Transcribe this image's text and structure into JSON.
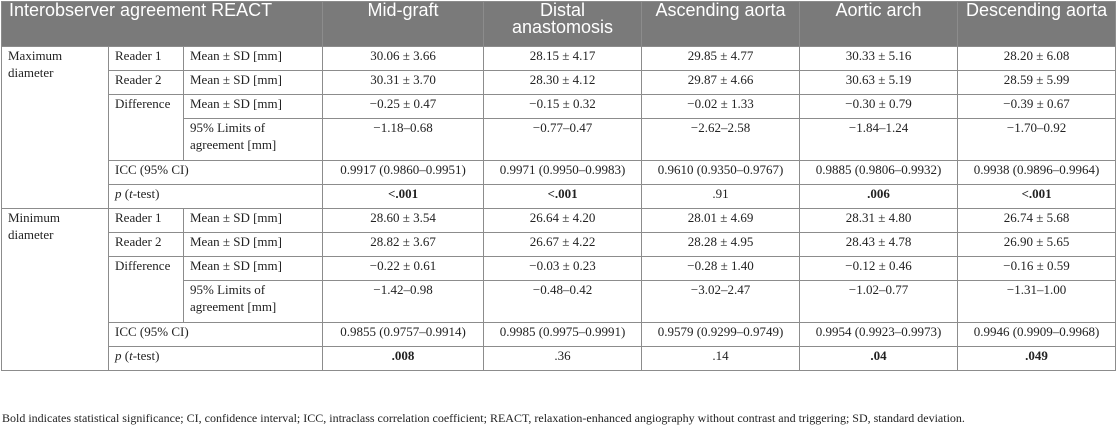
{
  "header": {
    "title": "Interobserver agreement REACT",
    "columns": [
      "Mid-graft",
      "Distal anastomosis",
      "Ascending aorta",
      "Aortic arch",
      "Descending aorta"
    ]
  },
  "groups": [
    {
      "label": "Maximum diameter",
      "rows": [
        {
          "reader": "Reader 1",
          "measure": "Mean ± SD [mm]",
          "values": [
            "30.06 ± 3.66",
            "28.15 ± 4.17",
            "29.85 ± 4.77",
            "30.33 ± 5.16",
            "28.20 ± 6.08"
          ]
        },
        {
          "reader": "Reader 2",
          "measure": "Mean ± SD [mm]",
          "values": [
            "30.31 ± 3.70",
            "28.30 ± 4.12",
            "29.87 ± 4.66",
            "30.63 ± 5.19",
            "28.59 ± 5.99"
          ]
        },
        {
          "reader": "Difference",
          "measure": "Mean ± SD [mm]",
          "values": [
            "−0.25 ± 0.47",
            "−0.15 ± 0.32",
            "−0.02 ± 1.33",
            "−0.30 ± 0.79",
            "−0.39 ± 0.67"
          ]
        },
        {
          "reader": "",
          "measure": "95% Limits of agreement [mm]",
          "values": [
            "−1.18–0.68",
            "−0.77–0.47",
            "−2.62–2.58",
            "−1.84–1.24",
            "−1.70–0.92"
          ]
        }
      ],
      "icc_label": "ICC (95% CI)",
      "icc": [
        "0.9917 (0.9860–0.9951)",
        "0.9971 (0.9950–0.9983)",
        "0.9610 (0.9350–0.9767)",
        "0.9885 (0.9806–0.9932)",
        "0.9938 (0.9896–0.9964)"
      ],
      "p_label_p": "p",
      "p_label_t": "t",
      "p": [
        "<.001",
        "<.001",
        ".91",
        ".006",
        "<.001"
      ],
      "p_bold": [
        true,
        true,
        false,
        true,
        true
      ]
    },
    {
      "label": "Minimum diameter",
      "rows": [
        {
          "reader": "Reader 1",
          "measure": "Mean ± SD [mm]",
          "values": [
            "28.60 ± 3.54",
            "26.64 ± 4.20",
            "28.01 ± 4.69",
            "28.31 ± 4.80",
            "26.74 ± 5.68"
          ]
        },
        {
          "reader": "Reader 2",
          "measure": "Mean ± SD [mm]",
          "values": [
            "28.82 ± 3.67",
            "26.67 ± 4.22",
            "28.28 ± 4.95",
            "28.43 ± 4.78",
            "26.90 ± 5.65"
          ]
        },
        {
          "reader": "Difference",
          "measure": "Mean ± SD [mm]",
          "values": [
            "−0.22 ± 0.61",
            "−0.03 ± 0.23",
            "−0.28 ± 1.40",
            "−0.12 ± 0.46",
            "−0.16 ± 0.59"
          ]
        },
        {
          "reader": "",
          "measure": "95% Limits of agreement [mm]",
          "values": [
            "−1.42–0.98",
            "−0.48–0.42",
            "−3.02–2.47",
            "−1.02–0.77",
            "−1.31–1.00"
          ]
        }
      ],
      "icc_label": "ICC (95% CI)",
      "icc": [
        "0.9855 (0.9757–0.9914)",
        "0.9985 (0.9975–0.9991)",
        "0.9579 (0.9299–0.9749)",
        "0.9954 (0.9923–0.9973)",
        "0.9946 (0.9909–0.9968)"
      ],
      "p_label_p": "p",
      "p_label_t": "t",
      "p": [
        ".008",
        ".36",
        ".14",
        ".04",
        ".049"
      ],
      "p_bold": [
        true,
        false,
        false,
        true,
        true
      ]
    }
  ],
  "footnote": "Bold indicates statistical significance; CI, confidence interval; ICC, intraclass correlation coefficient; REACT, relaxation-enhanced angiography without contrast and triggering; SD, standard deviation."
}
